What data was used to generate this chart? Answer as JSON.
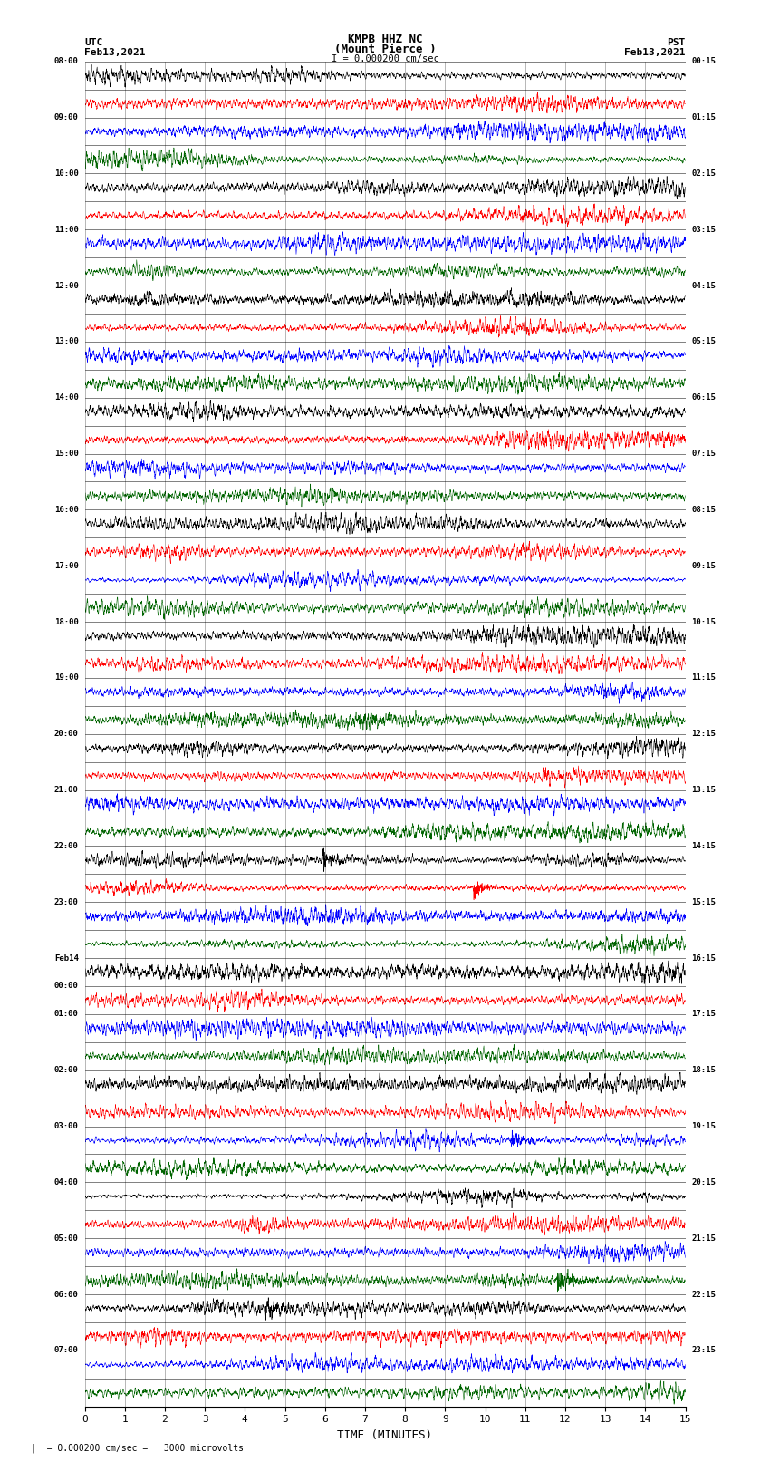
{
  "title_line1": "KMPB HHZ NC",
  "title_line2": "(Mount Pierce )",
  "scale_bar": "I = 0.000200 cm/sec",
  "left_label_top": "UTC",
  "left_label_date": "Feb13,2021",
  "right_label_top": "PST",
  "right_label_date": "Feb13,2021",
  "xlabel": "TIME (MINUTES)",
  "scale_note": "= 0.000200 cm/sec =   3000 microvolts",
  "x_ticks": [
    0,
    1,
    2,
    3,
    4,
    5,
    6,
    7,
    8,
    9,
    10,
    11,
    12,
    13,
    14,
    15
  ],
  "trace_colors": [
    "#000000",
    "#ff0000",
    "#0000ff",
    "#006400"
  ],
  "num_rows": 48,
  "minutes_per_row": 15,
  "background_color": "#ffffff",
  "left_times_utc": [
    "08:00",
    "",
    "09:00",
    "",
    "10:00",
    "",
    "11:00",
    "",
    "12:00",
    "",
    "13:00",
    "",
    "14:00",
    "",
    "15:00",
    "",
    "16:00",
    "",
    "17:00",
    "",
    "18:00",
    "",
    "19:00",
    "",
    "20:00",
    "",
    "21:00",
    "",
    "22:00",
    "",
    "23:00",
    "",
    "Feb14",
    "00:00",
    "01:00",
    "",
    "02:00",
    "",
    "03:00",
    "",
    "04:00",
    "",
    "05:00",
    "",
    "06:00",
    "",
    "07:00",
    ""
  ],
  "right_times_pst": [
    "00:15",
    "",
    "01:15",
    "",
    "02:15",
    "",
    "03:15",
    "",
    "04:15",
    "",
    "05:15",
    "",
    "06:15",
    "",
    "07:15",
    "",
    "08:15",
    "",
    "09:15",
    "",
    "10:15",
    "",
    "11:15",
    "",
    "12:15",
    "",
    "13:15",
    "",
    "14:15",
    "",
    "15:15",
    "",
    "16:15",
    "",
    "17:15",
    "",
    "18:15",
    "",
    "19:15",
    "",
    "20:15",
    "",
    "21:15",
    "",
    "22:15",
    "",
    "23:15",
    ""
  ],
  "seed": 42,
  "samples_per_row": 3000,
  "amplitude": 0.42,
  "linewidth": 0.4,
  "high_freq_weight": 0.55,
  "mid_freq_weight": 0.3,
  "low_freq_weight": 0.15
}
